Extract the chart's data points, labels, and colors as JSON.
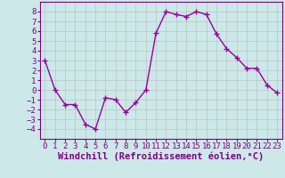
{
  "x": [
    0,
    1,
    2,
    3,
    4,
    5,
    6,
    7,
    8,
    9,
    10,
    11,
    12,
    13,
    14,
    15,
    16,
    17,
    18,
    19,
    20,
    21,
    22,
    23
  ],
  "y": [
    3.0,
    0.0,
    -1.5,
    -1.5,
    -3.5,
    -4.0,
    -0.8,
    -1.0,
    -2.3,
    -1.3,
    0.0,
    5.8,
    8.0,
    7.7,
    7.5,
    8.0,
    7.7,
    5.7,
    4.2,
    3.3,
    2.2,
    2.2,
    0.5,
    -0.3
  ],
  "line_color": "#990099",
  "marker": "+",
  "marker_size": 4,
  "marker_edge_width": 1.0,
  "xlabel": "Windchill (Refroidissement éolien,°C)",
  "xlim": [
    -0.5,
    23.5
  ],
  "ylim": [
    -5,
    9
  ],
  "yticks": [
    -4,
    -3,
    -2,
    -1,
    0,
    1,
    2,
    3,
    4,
    5,
    6,
    7,
    8
  ],
  "xticks": [
    0,
    1,
    2,
    3,
    4,
    5,
    6,
    7,
    8,
    9,
    10,
    11,
    12,
    13,
    14,
    15,
    16,
    17,
    18,
    19,
    20,
    21,
    22,
    23
  ],
  "background_color": "#cce8e8",
  "grid_color": "#b0b0b0",
  "tick_label_fontsize": 6.5,
  "xlabel_fontsize": 7.5,
  "line_width": 1.0,
  "spine_color": "#800080",
  "label_color": "#800080",
  "tick_color": "#800080"
}
